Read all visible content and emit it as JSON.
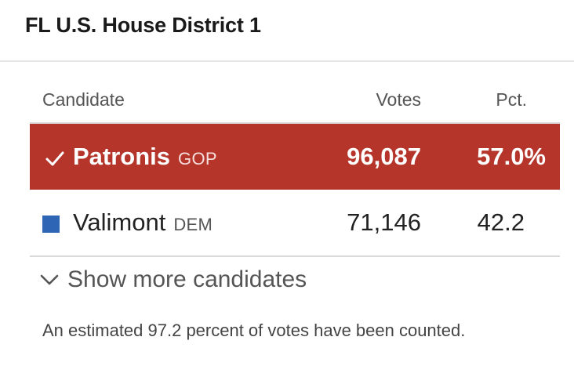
{
  "header": {
    "title": "FL U.S. House District 1"
  },
  "table": {
    "columns": {
      "candidate": "Candidate",
      "votes": "Votes",
      "pct": "Pct."
    },
    "rows": [
      {
        "name": "Patronis",
        "party": "GOP",
        "votes": "96,087",
        "pct": "57.0%",
        "winner": true,
        "icon": "checkmark-icon",
        "color": "#b5352b"
      },
      {
        "name": "Valimont",
        "party": "DEM",
        "votes": "71,146",
        "pct": "42.2",
        "winner": false,
        "icon": "party-swatch-icon",
        "color": "#2e66b5"
      }
    ]
  },
  "show_more": {
    "label": "Show more candidates",
    "icon": "chevron-down-icon"
  },
  "note": "An estimated 97.2 percent of votes have been counted."
}
